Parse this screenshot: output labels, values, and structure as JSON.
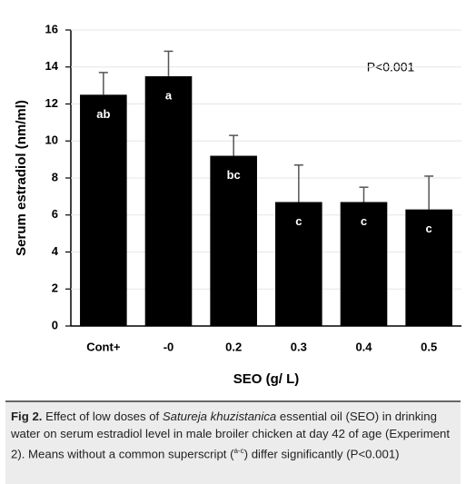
{
  "chart_data": {
    "type": "bar",
    "y_label": "Serum estradiol (nm/ml)",
    "x_label": "SEO (g/ L)",
    "annotation": "P<0.001",
    "categories": [
      "Cont+",
      "-0",
      "0.2",
      "0.3",
      "0.4",
      "0.5"
    ],
    "values": [
      12.5,
      13.5,
      9.2,
      6.7,
      6.7,
      6.3
    ],
    "errors": [
      1.2,
      1.35,
      1.1,
      2.0,
      0.8,
      1.8
    ],
    "letters": [
      "ab",
      "a",
      "bc",
      "c",
      "c",
      "c"
    ],
    "color": "#000000",
    "ylim": [
      0,
      16
    ],
    "yticks": [
      0,
      2,
      4,
      6,
      8,
      10,
      12,
      14,
      16
    ],
    "grid": true
  },
  "caption": {
    "label": "Fig 2.",
    "text_before": "Effect of low doses of",
    "species": "Satureja khuzistanica",
    "text_middle": "essential oil (SEO) in drinking water on serum estradiol level in male broiler chicken at day 42 of age (Experiment 2). Means without a common superscript (",
    "superscript": "a-c",
    "text_after": ") differ significantly (P<0.001)"
  }
}
